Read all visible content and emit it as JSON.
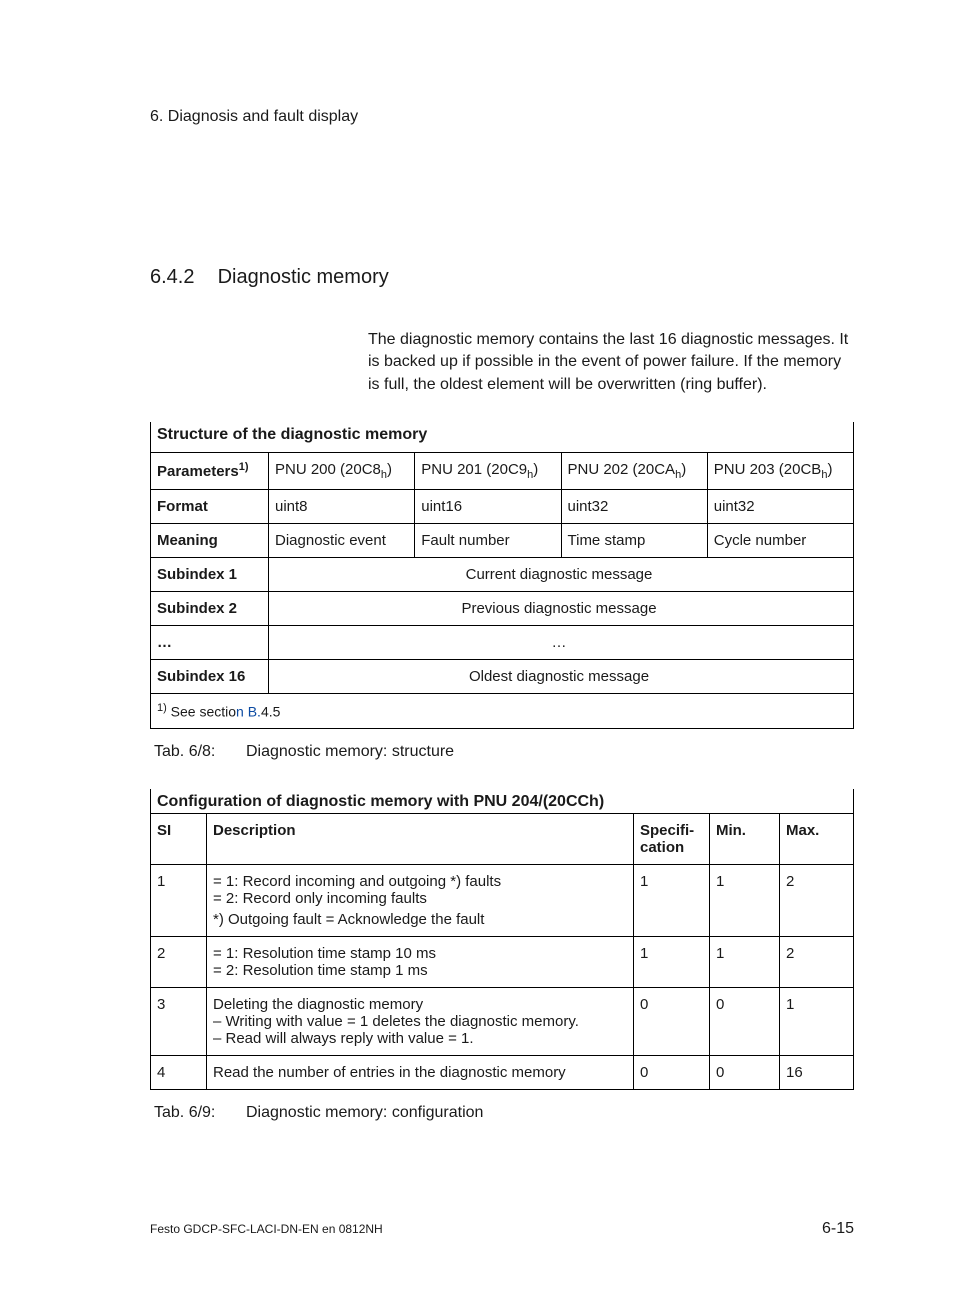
{
  "running_head": "6.   Diagnosis and fault display",
  "section": {
    "number": "6.4.2",
    "title": "Diagnostic memory"
  },
  "intro": "The diagnostic memory contains the last 16 diagnostic messages. It is backed up if possible in the event of power failure. If the memory is full, the oldest element will be overwritten (ring buffer).",
  "table1": {
    "title": "Structure of the diagnostic memory",
    "row_param_label": "Parameters",
    "row_param_sup": "1)",
    "pnu_cells": [
      {
        "pre": "PNU 200 (20C8",
        "sub": "h",
        "post": ")"
      },
      {
        "pre": "PNU 201 (20C9",
        "sub": "h",
        "post": ")"
      },
      {
        "pre": "PNU 202 (20CA",
        "sub": "h",
        "post": ")"
      },
      {
        "pre": "PNU 203 (20CB",
        "sub": "h",
        "post": ")"
      }
    ],
    "row_format_label": "Format",
    "formats": [
      "uint8",
      "uint16",
      "uint32",
      "uint32"
    ],
    "row_meaning_label": "Meaning",
    "meanings": [
      "Diagnostic event",
      "Fault number",
      "Time stamp",
      "Cycle number"
    ],
    "sub_rows": [
      {
        "label": "Subindex 1",
        "text": "Current diagnostic message"
      },
      {
        "label": "Subindex 2",
        "text": "Previous diagnostic message"
      },
      {
        "label": "…",
        "text": "…"
      },
      {
        "label": "Subindex 16",
        "text": "Oldest diagnostic message"
      }
    ],
    "footnote_sup": "1)",
    "footnote_pre": " See sectio",
    "footnote_link": "n B.",
    "footnote_post": "4.5",
    "caption_label": "Tab. 6/8:",
    "caption_text": "Diagnostic memory: structure"
  },
  "table2": {
    "title": "Configuration of diagnostic memory with PNU 204/(20CCh)",
    "head": {
      "si": "SI",
      "desc": "Description",
      "spec": "Specifi­cation",
      "min": "Min.",
      "max": "Max."
    },
    "rows": [
      {
        "si": "1",
        "lines": [
          "= 1: Record incoming and outgoing *) faults",
          "= 2: Record only incoming faults"
        ],
        "note_mark": "*)",
        "note_text": "Outgoing fault = Acknowledge the fault",
        "spec": "1",
        "min": "1",
        "max": "2"
      },
      {
        "si": "2",
        "lines": [
          "= 1: Resolution time stamp 10 ms",
          "= 2: Resolution time stamp 1 ms"
        ],
        "spec": "1",
        "min": "1",
        "max": "2"
      },
      {
        "si": "3",
        "lines": [
          "Deleting the diagnostic memory"
        ],
        "dashes": [
          "Writing with value = 1 deletes the diagnostic memory.",
          "Read will always reply with value = 1."
        ],
        "spec": "0",
        "min": "0",
        "max": "1"
      },
      {
        "si": "4",
        "lines": [
          "Read the number of entries in the diagnostic memory"
        ],
        "spec": "0",
        "min": "0",
        "max": "16"
      }
    ],
    "caption_label": "Tab. 6/9:",
    "caption_text": "Diagnostic memory: configuration"
  },
  "footer": {
    "left": "Festo  GDCP-SFC-LACI-DN-EN  en 0812NH",
    "right": "6-15"
  }
}
